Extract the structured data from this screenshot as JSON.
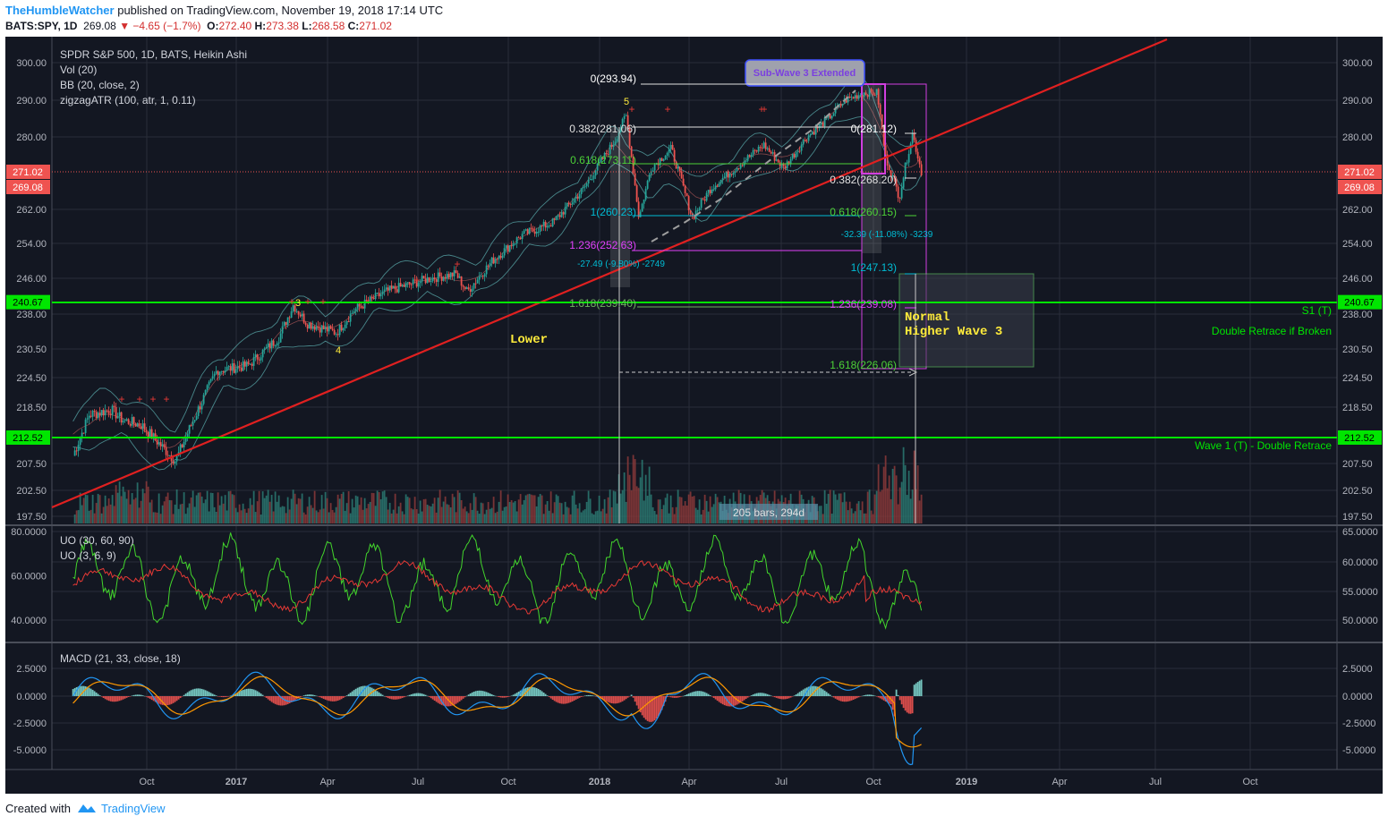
{
  "header": {
    "user": "TheHumbleWatcher",
    "published": "published on TradingView.com, November 19, 2018 17:14 UTC",
    "ticker": "BATS:SPY, 1D",
    "last": "269.08",
    "change": "▼ −4.65 (−1.7%)",
    "o_label": "O:",
    "o": "272.40",
    "h_label": "H:",
    "h": "273.38",
    "l_label": "L:",
    "l": "268.58",
    "c_label": "C:",
    "c": "271.02"
  },
  "footer": {
    "created_with": "Created with",
    "brand": "TradingView"
  },
  "legend": [
    "SPDR S&P 500, 1D, BATS, Heikin Ashi",
    "Vol (20)",
    "BB (20, close, 2)",
    "zigzagATR (100, atr, 1, 0.11)"
  ],
  "uo_legend": [
    "UO (30, 60, 90)",
    "UO (3, 6, 9)"
  ],
  "macd_legend": "MACD (21, 33, close, 18)",
  "colors": {
    "bg": "#131722",
    "grid": "#2a2e39",
    "up": "#26a69a",
    "down": "#ef5350",
    "trend": "#e02020",
    "support": "#00e600",
    "fib_green": "#4cd137",
    "fib_magenta": "#e040fb",
    "fib_cyan": "#00bcd4",
    "yellow_text": "#ffeb3b"
  },
  "chart_data": [
    {
      "type": "line",
      "name_label": "SPDR S&P 500, 1D, BATS, Heikin Ashi",
      "y_ticks": [
        "300.00",
        "290.00",
        "280.00",
        "271.02",
        "269.08",
        "262.00",
        "254.00",
        "246.00",
        "240.67",
        "238.00",
        "230.50",
        "224.50",
        "218.50",
        "212.52",
        "207.50",
        "202.50",
        "197.50"
      ],
      "x_ticks": [
        "Oct",
        "2017",
        "Apr",
        "Jul",
        "Oct",
        "2018",
        "Apr",
        "Jul",
        "Oct",
        "2019",
        "Apr",
        "Jul",
        "Oct"
      ],
      "price_badges": [
        {
          "value": "271.02",
          "color": "#ef5350"
        },
        {
          "value": "269.08",
          "color": "#ef5350"
        },
        {
          "value": "240.67",
          "color": "#00e600"
        },
        {
          "value": "212.52",
          "color": "#00e600"
        }
      ],
      "close_series": {
        "x": [
          "2016-07-25",
          "2016-08-10",
          "2016-09-01",
          "2016-09-12",
          "2016-10-01",
          "2016-11-04",
          "2016-11-15",
          "2016-12-01",
          "2016-12-15",
          "2017-01-15",
          "2017-02-15",
          "2017-03-01",
          "2017-03-15",
          "2017-04-13",
          "2017-05-01",
          "2017-06-01",
          "2017-06-15",
          "2017-07-15",
          "2017-08-10",
          "2017-08-21",
          "2017-09-15",
          "2017-10-15",
          "2017-11-15",
          "2017-12-15",
          "2018-01-15",
          "2018-01-26",
          "2018-02-08",
          "2018-02-20",
          "2018-03-12",
          "2018-04-02",
          "2018-04-20",
          "2018-05-15",
          "2018-06-12",
          "2018-07-02",
          "2018-07-25",
          "2018-08-15",
          "2018-09-01",
          "2018-09-20",
          "2018-10-03",
          "2018-10-11",
          "2018-10-25",
          "2018-11-07",
          "2018-11-16"
        ],
        "values": [
          209,
          217,
          218,
          216,
          215,
          208,
          213,
          220,
          226,
          227,
          233,
          240,
          236,
          234,
          239,
          243,
          244,
          246,
          247,
          243,
          250,
          256,
          259,
          267,
          279,
          286,
          260,
          272,
          277,
          260,
          267,
          272,
          278,
          272,
          280,
          285,
          290,
          292,
          292,
          275,
          265,
          281,
          271
        ]
      },
      "annotations": [
        {
          "text": "Sub-Wave 3 Extended"
        },
        {
          "text": "0(293.94)"
        },
        {
          "text": "0.382(281.06)"
        },
        {
          "text": "0.618(273.11)"
        },
        {
          "text": "1(260.23)"
        },
        {
          "text": "1.236(252.63)"
        },
        {
          "text": "1.618(239.40)"
        },
        {
          "text": "-27.49 (-9.80%) -2749"
        },
        {
          "text": "0(281.12)"
        },
        {
          "text": "0.382(268.20)"
        },
        {
          "text": "0.618(260.15)"
        },
        {
          "text": "-32.39 (-11.08%) -3239"
        },
        {
          "text": "1(247.13)"
        },
        {
          "text": "1.236(239.08)"
        },
        {
          "text": "1.618(226.06)"
        },
        {
          "text": "Normal"
        },
        {
          "text": "Higher Wave 3"
        },
        {
          "text": "Lower"
        },
        {
          "text": "S1 (T)"
        },
        {
          "text": "Double Retrace if Broken"
        },
        {
          "text": "Wave 1 (T) - Double Retrace"
        },
        {
          "text": "205 bars, 294d"
        },
        {
          "text": "3"
        },
        {
          "text": "4"
        },
        {
          "text": "5"
        }
      ]
    },
    {
      "type": "line",
      "name_label": "UO",
      "y_ticks_left": [
        "80.0000",
        "60.0000",
        "40.0000"
      ],
      "y_ticks_right": [
        "65.0000",
        "60.0000",
        "55.0000",
        "50.0000"
      ],
      "series": [
        {
          "name": "UO (30, 60, 90)",
          "color": "#e53935"
        },
        {
          "name": "UO (3, 6, 9)",
          "color": "#43d62c"
        }
      ]
    },
    {
      "type": "bar",
      "name_label": "MACD (21, 33, close, 18)",
      "y_ticks": [
        "2.5000",
        "0.0000",
        "-2.5000",
        "-5.0000"
      ]
    }
  ]
}
